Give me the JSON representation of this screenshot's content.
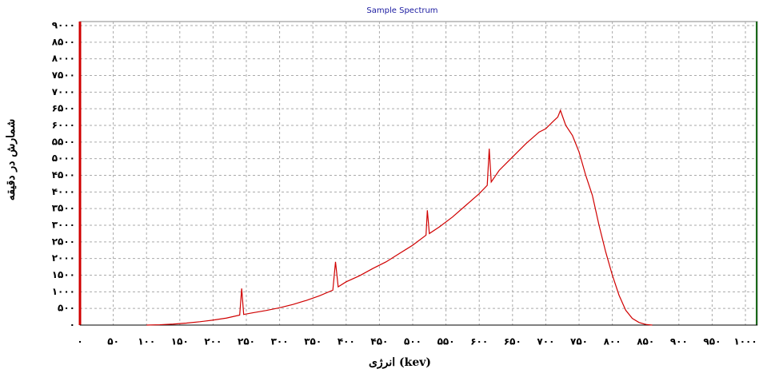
{
  "chart_data": {
    "type": "line",
    "title": "Sample Spectrum",
    "xlabel": "انرژی (kev)",
    "ylabel": "شمارش در دقیقه",
    "x": [
      100,
      120,
      140,
      160,
      180,
      200,
      220,
      240,
      243,
      246,
      260,
      280,
      300,
      320,
      340,
      360,
      380,
      384,
      388,
      400,
      420,
      440,
      460,
      480,
      500,
      520,
      522,
      525,
      540,
      560,
      580,
      600,
      612,
      615,
      618,
      630,
      650,
      670,
      690,
      700,
      710,
      718,
      722,
      730,
      740,
      750,
      760,
      770,
      780,
      790,
      800,
      810,
      820,
      830,
      840,
      850,
      860
    ],
    "series": [
      {
        "name": null,
        "color": "#d00000",
        "values": [
          0,
          10,
          30,
          60,
          100,
          150,
          210,
          300,
          1100,
          320,
          370,
          440,
          520,
          620,
          740,
          880,
          1050,
          1900,
          1150,
          1300,
          1480,
          1700,
          1900,
          2150,
          2400,
          2700,
          3450,
          2750,
          2950,
          3250,
          3600,
          3950,
          4200,
          5300,
          4300,
          4650,
          5050,
          5450,
          5800,
          5900,
          6100,
          6250,
          6450,
          6000,
          5700,
          5200,
          4500,
          3900,
          3000,
          2200,
          1500,
          900,
          450,
          200,
          80,
          20,
          0
        ]
      }
    ],
    "xlim": [
      0,
      1018
    ],
    "ylim": [
      0,
      9120
    ],
    "grid": true,
    "xticks": [
      {
        "value": 0,
        "label": "۰"
      },
      {
        "value": 50,
        "label": "۵۰"
      },
      {
        "value": 100,
        "label": "۱۰۰"
      },
      {
        "value": 150,
        "label": "۱۵۰"
      },
      {
        "value": 200,
        "label": "۲۰۰"
      },
      {
        "value": 250,
        "label": "۲۵۰"
      },
      {
        "value": 300,
        "label": "۳۰۰"
      },
      {
        "value": 350,
        "label": "۳۵۰"
      },
      {
        "value": 400,
        "label": "۴۰۰"
      },
      {
        "value": 450,
        "label": "۴۵۰"
      },
      {
        "value": 500,
        "label": "۵۰۰"
      },
      {
        "value": 550,
        "label": "۵۵۰"
      },
      {
        "value": 600,
        "label": "۶۰۰"
      },
      {
        "value": 650,
        "label": "۶۵۰"
      },
      {
        "value": 700,
        "label": "۷۰۰"
      },
      {
        "value": 750,
        "label": "۷۵۰"
      },
      {
        "value": 800,
        "label": "۸۰۰"
      },
      {
        "value": 850,
        "label": "۸۵۰"
      },
      {
        "value": 900,
        "label": "۹۰۰"
      },
      {
        "value": 950,
        "label": "۹۵۰"
      },
      {
        "value": 1000,
        "label": "۱۰۰۰"
      }
    ],
    "yticks": [
      {
        "value": 0,
        "label": "۰"
      },
      {
        "value": 500,
        "label": "۵۰۰"
      },
      {
        "value": 1000,
        "label": "۱۰۰۰"
      },
      {
        "value": 1500,
        "label": "۱۵۰۰"
      },
      {
        "value": 2000,
        "label": "۲۰۰۰"
      },
      {
        "value": 2500,
        "label": "۲۵۰۰"
      },
      {
        "value": 3000,
        "label": "۳۰۰۰"
      },
      {
        "value": 3500,
        "label": "۳۵۰۰"
      },
      {
        "value": 4000,
        "label": "۴۰۰۰"
      },
      {
        "value": 4500,
        "label": "۴۵۰۰"
      },
      {
        "value": 5000,
        "label": "۵۰۰۰"
      },
      {
        "value": 5500,
        "label": "۵۵۰۰"
      },
      {
        "value": 6000,
        "label": "۶۰۰۰"
      },
      {
        "value": 6500,
        "label": "۶۵۰۰"
      },
      {
        "value": 7000,
        "label": "۷۰۰۰"
      },
      {
        "value": 7500,
        "label": "۷۵۰۰"
      },
      {
        "value": 8000,
        "label": "۸۰۰۰"
      },
      {
        "value": 8500,
        "label": "۸۵۰۰"
      },
      {
        "value": 9000,
        "label": "۹۰۰۰"
      }
    ]
  }
}
